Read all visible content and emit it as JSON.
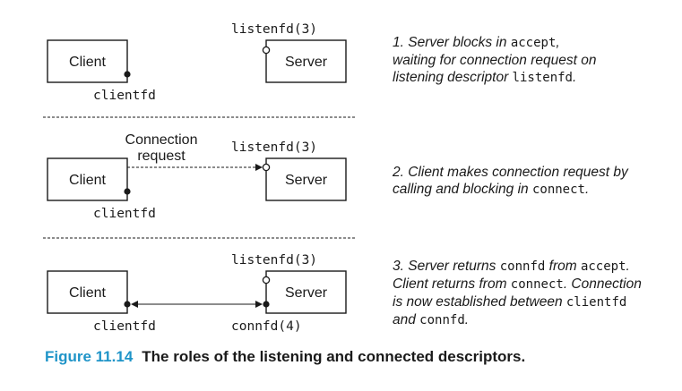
{
  "panels": [
    {
      "client_label": "Client",
      "server_label": "Server",
      "listenfd_label": "listenfd(3)",
      "clientfd_label": "clientfd",
      "step": {
        "lines": [
          [
            {
              "t": "1. Server blocks in "
            },
            {
              "t": "accept",
              "code": true
            },
            {
              "t": ","
            }
          ],
          [
            {
              "t": "waiting for connection request on"
            }
          ],
          [
            {
              "t": "listening descriptor "
            },
            {
              "t": "listenfd",
              "code": true
            },
            {
              "t": "."
            }
          ]
        ]
      }
    },
    {
      "client_label": "Client",
      "server_label": "Server",
      "listenfd_label": "listenfd(3)",
      "clientfd_label": "clientfd",
      "connection_label_line1": "Connection",
      "connection_label_line2": "request",
      "step": {
        "lines": [
          [
            {
              "t": "2. Client makes connection request by"
            }
          ],
          [
            {
              "t": "calling and blocking in "
            },
            {
              "t": "connect",
              "code": true
            },
            {
              "t": "."
            }
          ]
        ]
      }
    },
    {
      "client_label": "Client",
      "server_label": "Server",
      "listenfd_label": "listenfd(3)",
      "clientfd_label": "clientfd",
      "connfd_label": "connfd(4)",
      "step": {
        "lines": [
          [
            {
              "t": "3. Server returns "
            },
            {
              "t": "connfd",
              "code": true
            },
            {
              "t": " from "
            },
            {
              "t": "accept",
              "code": true
            },
            {
              "t": "."
            }
          ],
          [
            {
              "t": "Client returns from "
            },
            {
              "t": "connect",
              "code": true
            },
            {
              "t": ". Connection"
            }
          ],
          [
            {
              "t": "is now established between "
            },
            {
              "t": "clientfd",
              "code": true
            }
          ],
          [
            {
              "t": "and "
            },
            {
              "t": "connfd",
              "code": true
            },
            {
              "t": "."
            }
          ]
        ]
      }
    }
  ],
  "caption": {
    "figure_number": "Figure 11.14",
    "title": "The roles of the listening and connected descriptors."
  },
  "colors": {
    "caption_accent": "#1f94c8",
    "ink": "#1a1a1a"
  }
}
